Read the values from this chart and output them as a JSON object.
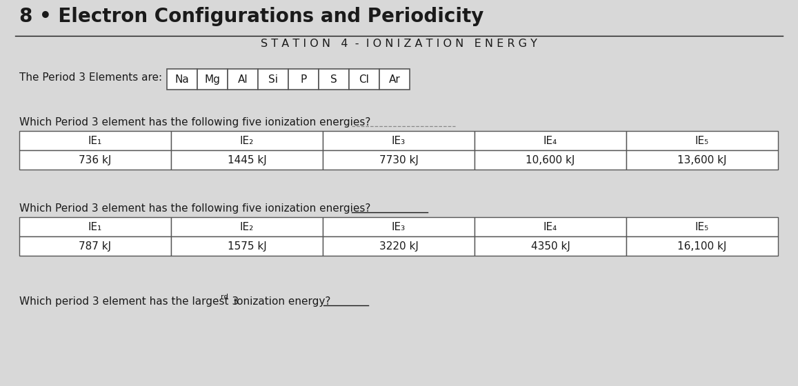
{
  "bg_color": "#d8d8d8",
  "title_line1": "8 • Electron Configurations and Periodicity",
  "title_line2": "S T A T I O N   4  -  I O N I Z A T I O N   E N E R G Y",
  "period3_label": "The Period 3 Elements are:",
  "period3_elements": [
    "Na",
    "Mg",
    "Al",
    "Si",
    "P",
    "S",
    "Cl",
    "Ar"
  ],
  "question1": "Which Period 3 element has the following five ionization energies?",
  "table1_headers": [
    "IE₁",
    "IE₂",
    "IE₃",
    "IE₄",
    "IE₅"
  ],
  "table1_values": [
    "736 kJ",
    "1445 kJ",
    "7730 kJ",
    "10,600 kJ",
    "13,600 kJ"
  ],
  "question2": "Which Period 3 element has the following five ionization energies?",
  "table2_headers": [
    "IE₁",
    "IE₂",
    "IE₃",
    "IE₄",
    "IE₅"
  ],
  "table2_values": [
    "787 kJ",
    "1575 kJ",
    "3220 kJ",
    "4350 kJ",
    "16,100 kJ"
  ],
  "question3_part1": "Which period 3 element has the largest 3",
  "question3_super": "rd",
  "question3_part2": " ionization energy?",
  "text_color": "#1a1a1a",
  "table_border_color": "#555555",
  "white": "#ffffff"
}
